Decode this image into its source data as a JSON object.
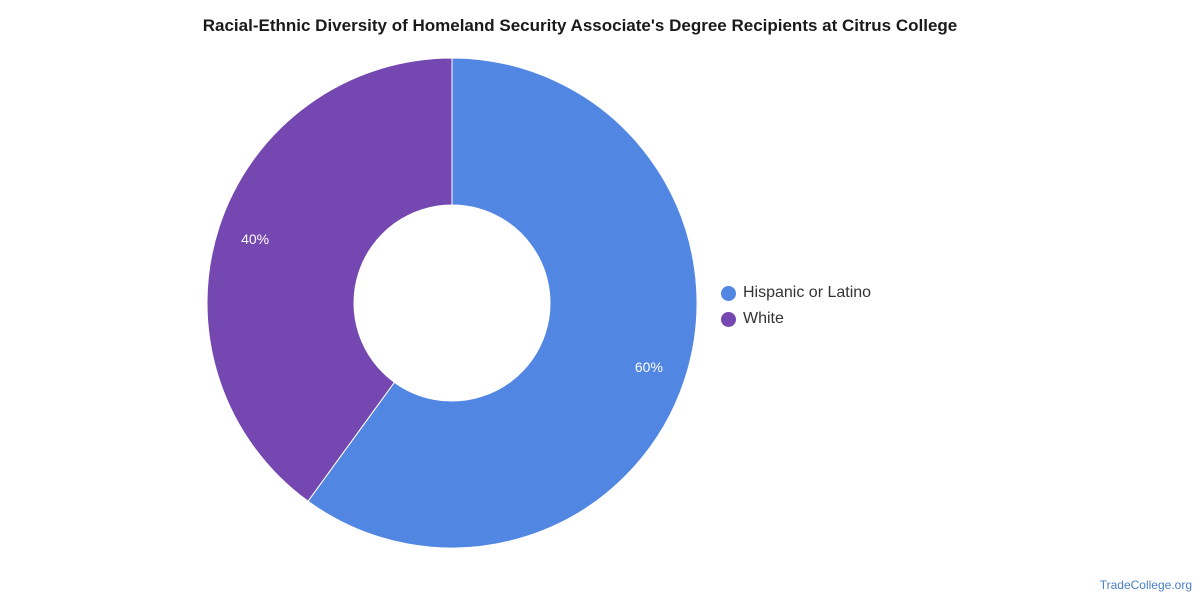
{
  "chart_data": {
    "type": "pie",
    "title": "Racial-Ethnic Diversity of Homeland Security Associate's Degree Recipients at Citrus College",
    "donut": true,
    "legend_position": "right",
    "slices": [
      {
        "label": "Hispanic or Latino",
        "value": 60,
        "display": "60%",
        "color": "#5286e3"
      },
      {
        "label": "White",
        "value": 40,
        "display": "40%",
        "color": "#7547b0"
      }
    ]
  },
  "watermark": "TradeCollege.org"
}
